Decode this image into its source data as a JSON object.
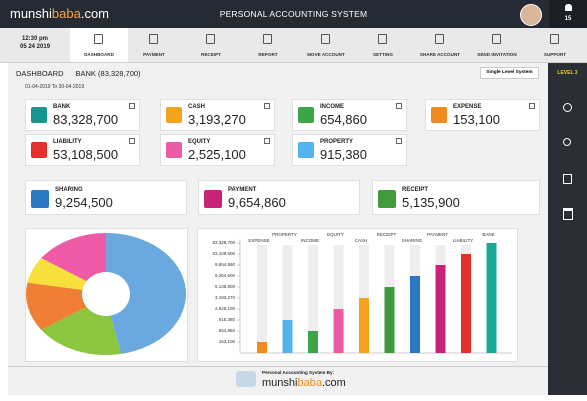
{
  "header": {
    "logo_a": "munshi",
    "logo_b": "baba",
    "logo_c": ".com",
    "title": "PERSONAL ACCOUNTING SYSTEM",
    "notifications": "15"
  },
  "clock": {
    "time": "12:30 pm",
    "date": "05 24 2019"
  },
  "nav": [
    "DASHBOARD",
    "PAYMENT",
    "RECEIPT",
    "REPORT",
    "MOVE ACCOUNT",
    "SETTING",
    "SHARE ACCOUNT",
    "SEND INVITATION",
    "SUPPORT"
  ],
  "sidebar": {
    "level": "LEVEL 3"
  },
  "page": {
    "title": "DASHBOARD",
    "bank": "BANK (83,328,700)",
    "button": "Single Level System",
    "range": "01-04-2019 To 30-04-2019"
  },
  "cards": [
    {
      "label": "BANK",
      "value": "83,328,700",
      "color": "#17958f"
    },
    {
      "label": "CASH",
      "value": "3,193,270",
      "color": "#f5a31c"
    },
    {
      "label": "INCOME",
      "value": "654,860",
      "color": "#3aa648"
    },
    {
      "label": "EXPENSE",
      "value": "153,100",
      "color": "#f28b1e"
    },
    {
      "label": "LIABILITY",
      "value": "53,108,500",
      "color": "#e2312d"
    },
    {
      "label": "EQUITY",
      "value": "2,525,100",
      "color": "#ec5aa3"
    },
    {
      "label": "PROPERTY",
      "value": "915,380",
      "color": "#52b3ee"
    }
  ],
  "wide_cards": [
    {
      "label": "SHARING",
      "value": "9,254,500",
      "color": "#2b78c2"
    },
    {
      "label": "PAYMENT",
      "value": "9,654,860",
      "color": "#c8237a"
    },
    {
      "label": "RECEIPT",
      "value": "5,135,900",
      "color": "#3f9a3a"
    }
  ],
  "chart_data": [
    {
      "type": "pie",
      "values": [
        47,
        18,
        13,
        7,
        15
      ],
      "colors": [
        "#6aa8e0",
        "#8cc63f",
        "#f07f35",
        "#f7e03c",
        "#ee5aa6"
      ]
    },
    {
      "type": "bar",
      "categories": [
        "EXPENSE",
        "PROPERTY",
        "INCOME",
        "EQUITY",
        "CASH",
        "RECEIPT",
        "SHARING",
        "PAYMENT",
        "LIABILITY",
        "BANK"
      ],
      "values": [
        153100,
        915380,
        654860,
        2525100,
        3193270,
        5135900,
        9254500,
        9654860,
        53108500,
        83328700
      ],
      "colors": [
        "#f28b1e",
        "#52b3ee",
        "#3aa648",
        "#ec5aa3",
        "#f5a31c",
        "#3f9a3a",
        "#2b78c2",
        "#c8237a",
        "#e2312d",
        "#1aa898"
      ],
      "yticks": [
        {
          "value": 83328700,
          "label": "83,328,700"
        },
        {
          "value": 53108500,
          "label": "53,108,500"
        },
        {
          "value": 9654860,
          "label": "9,654,860"
        },
        {
          "value": 9254500,
          "label": "9,254,500"
        },
        {
          "value": 5135900,
          "label": "5,135,900"
        },
        {
          "value": 3193270,
          "label": "3,193,270"
        },
        {
          "value": 2525100,
          "label": "2,525,100"
        },
        {
          "value": 915380,
          "label": "915,380"
        },
        {
          "value": 654860,
          "label": "654,860"
        },
        {
          "value": 153100,
          "label": "153,100"
        }
      ]
    }
  ],
  "footer": {
    "by": "Personal Accounting System By:",
    "logo_a": "munshi",
    "logo_b": "baba",
    "logo_c": ".com"
  }
}
